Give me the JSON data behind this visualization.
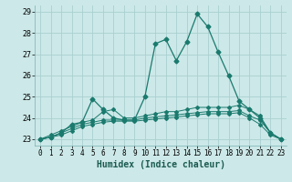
{
  "title": "",
  "xlabel": "Humidex (Indice chaleur)",
  "xlim": [
    -0.5,
    23.5
  ],
  "ylim": [
    22.7,
    29.3
  ],
  "yticks": [
    23,
    24,
    25,
    26,
    27,
    28,
    29
  ],
  "xticks": [
    0,
    1,
    2,
    3,
    4,
    5,
    6,
    7,
    8,
    9,
    10,
    11,
    12,
    13,
    14,
    15,
    16,
    17,
    18,
    19,
    20,
    21,
    22,
    23
  ],
  "bg_color": "#cce8e8",
  "grid_color": "#aacfcf",
  "line_color": "#1a7a6e",
  "lines": [
    [
      23.0,
      23.1,
      23.3,
      23.7,
      23.8,
      24.9,
      24.4,
      24.0,
      23.9,
      23.9,
      25.0,
      27.5,
      27.7,
      26.7,
      27.6,
      28.9,
      28.3,
      27.1,
      26.0,
      24.8,
      24.4,
      24.0,
      23.3,
      23.0
    ],
    [
      23.0,
      23.2,
      23.4,
      23.6,
      23.8,
      23.9,
      24.3,
      24.4,
      24.0,
      24.0,
      24.1,
      24.2,
      24.3,
      24.3,
      24.4,
      24.5,
      24.5,
      24.5,
      24.5,
      24.6,
      24.4,
      24.1,
      23.3,
      23.0
    ],
    [
      23.0,
      23.1,
      23.3,
      23.5,
      23.7,
      23.8,
      23.9,
      23.9,
      23.9,
      23.9,
      24.0,
      24.05,
      24.1,
      24.15,
      24.2,
      24.25,
      24.3,
      24.3,
      24.3,
      24.35,
      24.1,
      23.9,
      23.3,
      23.0
    ],
    [
      23.0,
      23.1,
      23.2,
      23.4,
      23.6,
      23.7,
      23.8,
      23.85,
      23.85,
      23.85,
      23.9,
      23.95,
      24.0,
      24.05,
      24.1,
      24.15,
      24.2,
      24.2,
      24.2,
      24.25,
      24.0,
      23.7,
      23.2,
      23.0
    ]
  ],
  "marker": "D",
  "markersize_main": 2.5,
  "markersize_sub": 2.0,
  "linewidth_main": 0.9,
  "linewidth_sub": 0.7,
  "tick_fontsize": 5.5,
  "xlabel_fontsize": 7.0
}
